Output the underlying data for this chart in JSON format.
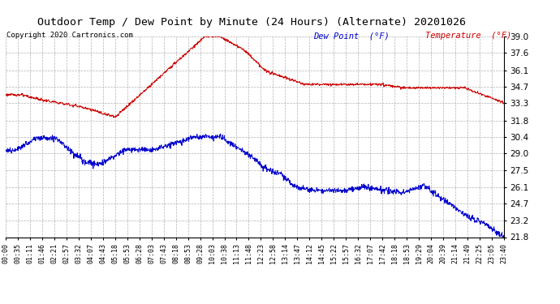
{
  "title": "Outdoor Temp / Dew Point by Minute (24 Hours) (Alternate) 20201026",
  "copyright": "Copyright 2020 Cartronics.com",
  "legend_dew": "Dew Point  (°F)",
  "legend_temp": "Temperature  (°F)",
  "temp_color": "#cc0000",
  "dew_color": "#0000cc",
  "background_color": "#ffffff",
  "grid_color": "#aaaaaa",
  "ylim_min": 21.8,
  "ylim_max": 39.0,
  "yticks": [
    21.8,
    23.2,
    24.7,
    26.1,
    27.5,
    29.0,
    30.4,
    31.8,
    33.3,
    34.7,
    36.1,
    37.6,
    39.0
  ],
  "n_minutes": 1441,
  "xtick_labels": [
    "00:00",
    "00:35",
    "01:11",
    "01:46",
    "02:21",
    "02:57",
    "03:32",
    "04:07",
    "04:43",
    "05:18",
    "05:53",
    "06:28",
    "07:03",
    "07:43",
    "08:18",
    "08:53",
    "09:28",
    "10:03",
    "10:38",
    "11:13",
    "11:48",
    "12:23",
    "12:58",
    "13:14",
    "13:47",
    "14:12",
    "14:45",
    "15:22",
    "15:57",
    "16:32",
    "17:07",
    "17:42",
    "18:18",
    "18:53",
    "19:29",
    "20:04",
    "20:39",
    "21:14",
    "21:49",
    "22:25",
    "23:05",
    "23:40"
  ]
}
